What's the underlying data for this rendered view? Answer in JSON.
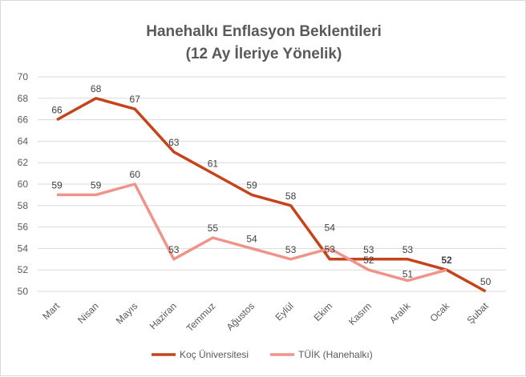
{
  "chart_data": {
    "type": "line",
    "title": [
      "Hanehalkı Enflasyon Beklentileri",
      "(12 Ay İleriye Yönelik)"
    ],
    "categories": [
      "Mart",
      "Nisan",
      "Mayıs",
      "Haziran",
      "Temmuz",
      "Ağustos",
      "Eylül",
      "Ekim",
      "Kasım",
      "Aralık",
      "Ocak",
      "Şubat"
    ],
    "ylim": [
      50,
      70
    ],
    "yticks": [
      50,
      52,
      54,
      56,
      58,
      60,
      62,
      64,
      66,
      68,
      70
    ],
    "grid": true,
    "legend": "bottom",
    "series": [
      {
        "name": "Koç Üniversitesi",
        "color": "#C4441C",
        "values": [
          66,
          68,
          67,
          63,
          61,
          59,
          58,
          53,
          53,
          53,
          52,
          50
        ]
      },
      {
        "name": "TÜİK (Hanehalkı)",
        "color": "#F0948A",
        "values": [
          59,
          59,
          60,
          53,
          55,
          54,
          53,
          54,
          52,
          51,
          52,
          null
        ]
      }
    ]
  }
}
